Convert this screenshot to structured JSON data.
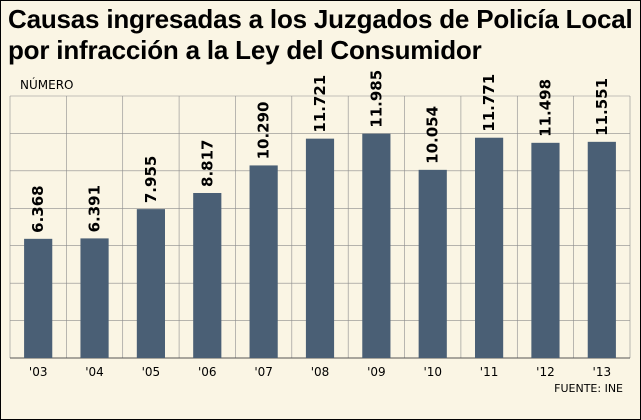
{
  "chart_data": {
    "type": "bar",
    "title": "Causas ingresadas a los Juzgados de Policía Local por infracción a la Ley del Consumidor",
    "ylabel": "NÚMERO",
    "source": "FUENTE: INE",
    "categories": [
      "'03",
      "'04",
      "'05",
      "'06",
      "'07",
      "'08",
      "'09",
      "'10",
      "'11",
      "'12",
      "'13"
    ],
    "values": [
      6368,
      6391,
      7955,
      8817,
      10290,
      11721,
      11985,
      10054,
      11771,
      11498,
      11551
    ],
    "value_labels": [
      "6.368",
      "6.391",
      "7.955",
      "8.817",
      "10.290",
      "11.721",
      "11.985",
      "10.054",
      "11.771",
      "11.498",
      "11.551"
    ],
    "ylim": [
      0,
      14000
    ],
    "grid": true,
    "bar_color": "#4a5f75"
  }
}
